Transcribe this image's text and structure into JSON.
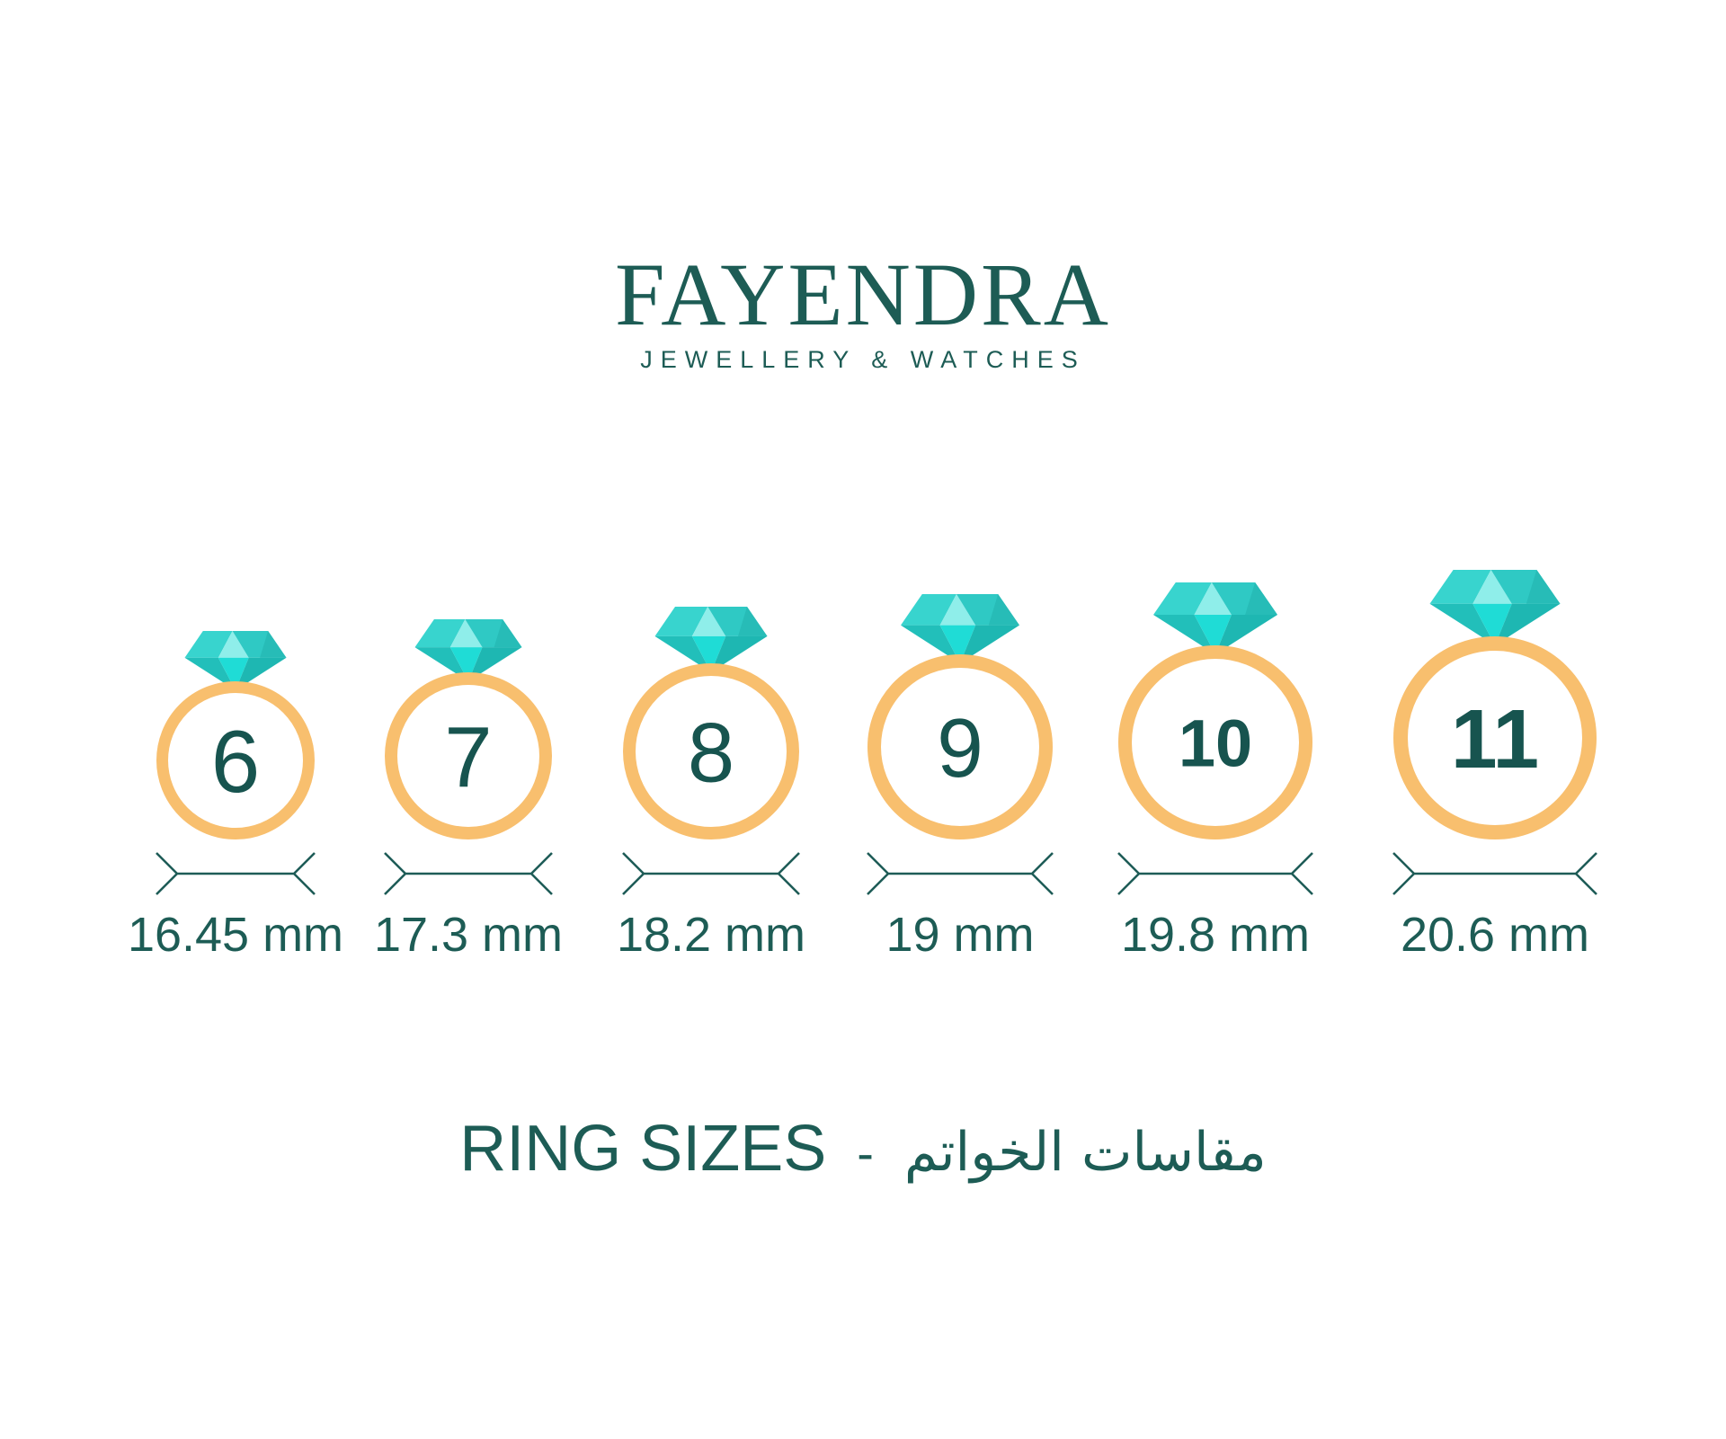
{
  "brand": {
    "name": "FAYENDRA",
    "tagline": "JEWELLERY & WATCHES"
  },
  "title": {
    "en": "RING SIZES",
    "separator": "-",
    "ar": "مقاسات الخواتم"
  },
  "rings": [
    {
      "size": "6",
      "diameter_label": "16.45 mm"
    },
    {
      "size": "7",
      "diameter_label": "17.3 mm"
    },
    {
      "size": "8",
      "diameter_label": "18.2 mm"
    },
    {
      "size": "9",
      "diameter_label": "19 mm"
    },
    {
      "size": "10",
      "diameter_label": "19.8 mm"
    },
    {
      "size": "11",
      "diameter_label": "20.6 mm"
    }
  ],
  "colors": {
    "background": "#ffffff",
    "teal_text": "#1d5c55",
    "digit_teal": "#17544f",
    "band_gold": "#f8bf6e",
    "dimension_line": "#1e5c57",
    "diamond": {
      "crown_left": "#38d4ce",
      "crown_center": "#8feeea",
      "crown_right": "#2fc9c4",
      "corner_right": "#27bcb7",
      "pavilion_left": "#22bfba",
      "pavilion_center": "#1fdcd6",
      "pavilion_right": "#1eb7b2"
    }
  }
}
